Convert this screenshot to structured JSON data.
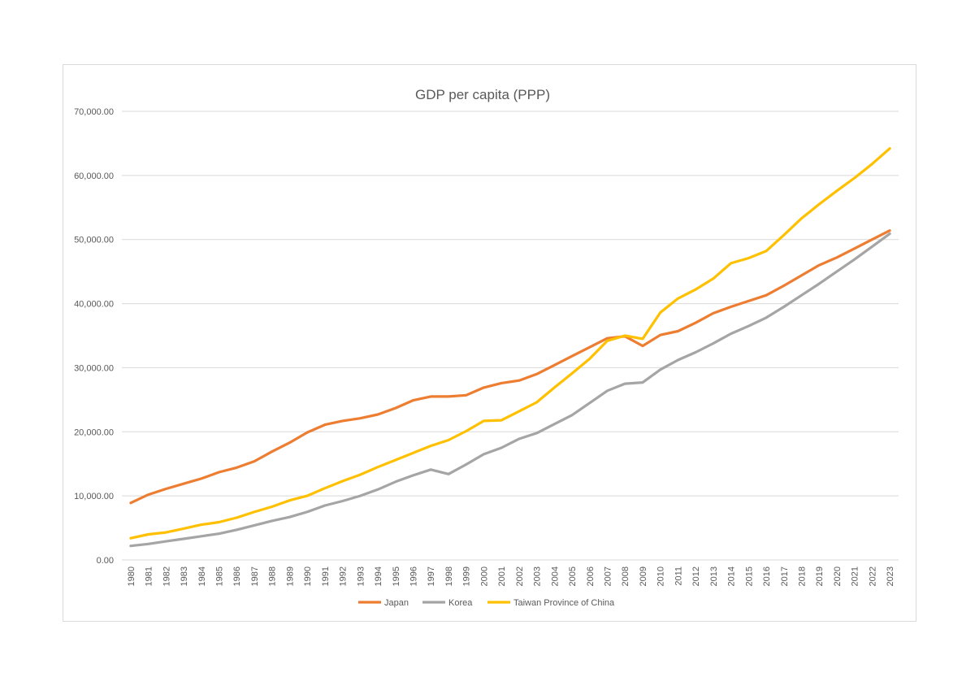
{
  "chart_data": {
    "type": "line",
    "title": "GDP per capita (PPP)",
    "xlabel": "",
    "ylabel": "",
    "x": [
      1980,
      1981,
      1982,
      1983,
      1984,
      1985,
      1986,
      1987,
      1988,
      1989,
      1990,
      1991,
      1992,
      1993,
      1994,
      1995,
      1996,
      1997,
      1998,
      1999,
      2000,
      2001,
      2002,
      2003,
      2004,
      2005,
      2006,
      2007,
      2008,
      2009,
      2010,
      2011,
      2012,
      2013,
      2014,
      2015,
      2016,
      2017,
      2018,
      2019,
      2020,
      2021,
      2022,
      2023
    ],
    "ylim": [
      0,
      70000
    ],
    "yticks": [
      0,
      10000,
      20000,
      30000,
      40000,
      50000,
      60000,
      70000
    ],
    "ytick_labels": [
      "0.00",
      "10,000.00",
      "20,000.00",
      "30,000.00",
      "40,000.00",
      "50,000.00",
      "60,000.00",
      "70,000.00"
    ],
    "grid": true,
    "legend_position": "bottom",
    "series": [
      {
        "name": "Japan",
        "color": "#ED7D31",
        "values": [
          8900,
          10200,
          11100,
          11900,
          12700,
          13700,
          14400,
          15400,
          16900,
          18300,
          19900,
          21100,
          21700,
          22100,
          22700,
          23700,
          24900,
          25500,
          25500,
          25700,
          26900,
          27600,
          28000,
          29000,
          30400,
          31800,
          33200,
          34600,
          34900,
          33400,
          35100,
          35700,
          37000,
          38500,
          39500,
          40400,
          41300,
          42800,
          44400,
          46000,
          47200,
          48600,
          50000,
          51400
        ]
      },
      {
        "name": "Korea",
        "color": "#A5A5A5",
        "values": [
          2200,
          2500,
          2900,
          3300,
          3700,
          4100,
          4700,
          5400,
          6100,
          6700,
          7500,
          8500,
          9200,
          10000,
          11000,
          12200,
          13200,
          14100,
          13400,
          14900,
          16500,
          17500,
          18900,
          19800,
          21200,
          22600,
          24500,
          26400,
          27500,
          27700,
          29700,
          31200,
          32400,
          33800,
          35300,
          36500,
          37800,
          39500,
          41300,
          43100,
          45000,
          46900,
          48900,
          50900
        ]
      },
      {
        "name": "Taiwan Province of China",
        "color": "#FFC000",
        "values": [
          3400,
          4000,
          4300,
          4900,
          5500,
          5900,
          6600,
          7500,
          8300,
          9300,
          10000,
          11200,
          12300,
          13300,
          14500,
          15600,
          16700,
          17800,
          18700,
          20100,
          21700,
          21800,
          23200,
          24600,
          26900,
          29100,
          31400,
          34200,
          35000,
          34500,
          38600,
          40800,
          42200,
          43900,
          46300,
          47100,
          48200,
          50700,
          53300,
          55500,
          57600,
          59600,
          61800,
          64200
        ]
      }
    ]
  }
}
